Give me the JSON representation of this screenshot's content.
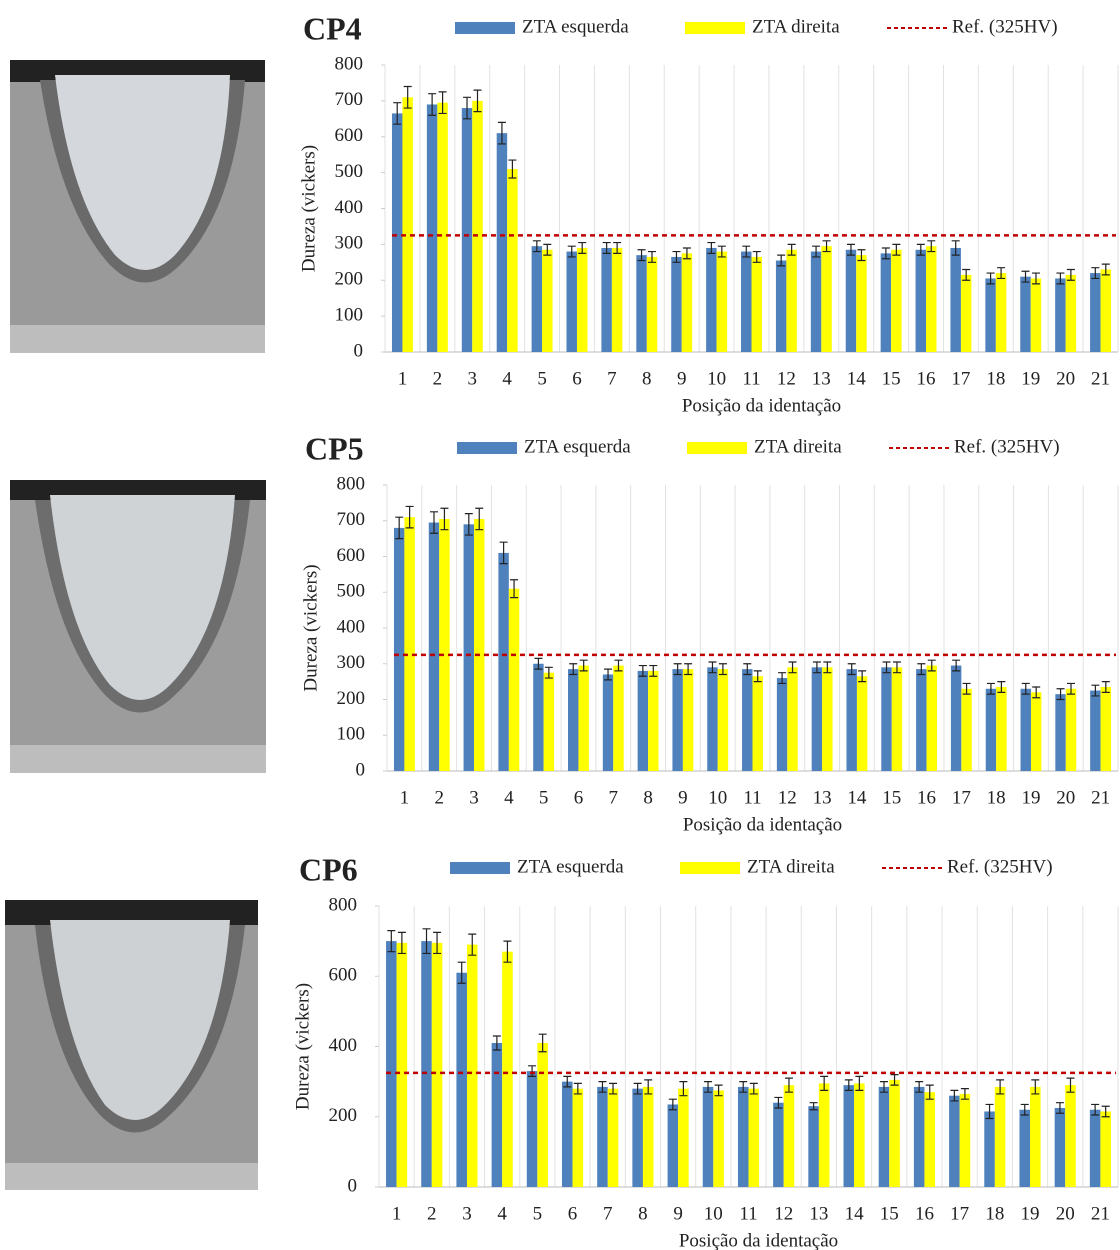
{
  "chart_data": [
    {
      "type": "bar",
      "title": "CP4",
      "x_label": "Posição da identação",
      "y_label": "Dureza (vickers)",
      "categories": [
        "1",
        "2",
        "3",
        "4",
        "5",
        "6",
        "7",
        "8",
        "9",
        "10",
        "11",
        "12",
        "13",
        "14",
        "15",
        "16",
        "17",
        "18",
        "19",
        "20",
        "21"
      ],
      "series": [
        {
          "name": "ZTA esquerda",
          "color": "#4f81bd",
          "values": [
            665,
            690,
            680,
            610,
            295,
            280,
            290,
            270,
            265,
            290,
            280,
            255,
            280,
            285,
            275,
            285,
            290,
            205,
            210,
            205,
            220
          ],
          "errors": [
            30,
            30,
            30,
            30,
            15,
            15,
            15,
            15,
            15,
            15,
            15,
            15,
            15,
            15,
            15,
            15,
            20,
            15,
            15,
            15,
            15
          ]
        },
        {
          "name": "ZTA direita",
          "color": "#ffff00",
          "values": [
            710,
            695,
            700,
            510,
            285,
            290,
            290,
            265,
            275,
            280,
            265,
            285,
            295,
            270,
            285,
            295,
            215,
            220,
            205,
            215,
            230
          ],
          "errors": [
            30,
            30,
            30,
            25,
            15,
            15,
            15,
            15,
            15,
            15,
            15,
            15,
            15,
            15,
            15,
            15,
            15,
            15,
            15,
            15,
            15
          ]
        }
      ],
      "reference": {
        "name": "Ref. (325HV)",
        "value": 325,
        "color": "#c00000"
      },
      "ylim": [
        0,
        800
      ],
      "yticks": [
        0,
        100,
        200,
        300,
        400,
        500,
        600,
        700,
        800
      ],
      "grid": true
    },
    {
      "type": "bar",
      "title": "CP5",
      "x_label": "Posição da identação",
      "y_label": "Dureza (vickers)",
      "categories": [
        "1",
        "2",
        "3",
        "4",
        "5",
        "6",
        "7",
        "8",
        "9",
        "10",
        "11",
        "12",
        "13",
        "14",
        "15",
        "16",
        "17",
        "18",
        "19",
        "20",
        "21"
      ],
      "series": [
        {
          "name": "ZTA esquerda",
          "color": "#4f81bd",
          "values": [
            680,
            695,
            690,
            610,
            300,
            285,
            270,
            280,
            285,
            290,
            285,
            260,
            290,
            285,
            290,
            285,
            295,
            230,
            230,
            215,
            225
          ],
          "errors": [
            30,
            30,
            30,
            30,
            15,
            15,
            15,
            15,
            15,
            15,
            15,
            15,
            15,
            15,
            15,
            15,
            15,
            15,
            15,
            15,
            15
          ]
        },
        {
          "name": "ZTA direita",
          "color": "#ffff00",
          "values": [
            710,
            705,
            705,
            510,
            275,
            295,
            295,
            280,
            285,
            285,
            265,
            290,
            290,
            265,
            290,
            295,
            230,
            235,
            220,
            230,
            235
          ],
          "errors": [
            30,
            30,
            30,
            25,
            15,
            15,
            15,
            15,
            15,
            15,
            15,
            15,
            15,
            15,
            15,
            15,
            15,
            15,
            15,
            15,
            15
          ]
        }
      ],
      "reference": {
        "name": "Ref. (325HV)",
        "value": 325,
        "color": "#c00000"
      },
      "ylim": [
        0,
        800
      ],
      "yticks": [
        0,
        100,
        200,
        300,
        400,
        500,
        600,
        700,
        800
      ],
      "grid": true
    },
    {
      "type": "bar",
      "title": "CP6",
      "x_label": "Posição da identação",
      "y_label": "Dureza (vickers)",
      "categories": [
        "1",
        "2",
        "3",
        "4",
        "5",
        "6",
        "7",
        "8",
        "9",
        "10",
        "11",
        "12",
        "13",
        "14",
        "15",
        "16",
        "17",
        "18",
        "19",
        "20",
        "21"
      ],
      "series": [
        {
          "name": "ZTA esquerda",
          "color": "#4f81bd",
          "values": [
            700,
            700,
            610,
            410,
            330,
            300,
            285,
            280,
            235,
            285,
            285,
            240,
            230,
            290,
            285,
            285,
            260,
            215,
            220,
            225,
            220
          ],
          "errors": [
            30,
            35,
            30,
            20,
            15,
            15,
            15,
            15,
            15,
            15,
            15,
            15,
            10,
            15,
            15,
            15,
            15,
            20,
            15,
            15,
            15
          ]
        },
        {
          "name": "ZTA direita",
          "color": "#ffff00",
          "values": [
            695,
            695,
            690,
            670,
            410,
            280,
            280,
            285,
            280,
            275,
            280,
            290,
            295,
            295,
            305,
            270,
            265,
            285,
            285,
            290,
            215
          ],
          "errors": [
            30,
            30,
            30,
            30,
            25,
            15,
            15,
            20,
            20,
            15,
            15,
            20,
            20,
            20,
            15,
            20,
            15,
            20,
            20,
            20,
            15
          ]
        }
      ],
      "reference": {
        "name": "Ref. (325HV)",
        "value": 325,
        "color": "#c00000"
      },
      "ylim": [
        0,
        800
      ],
      "yticks": [
        0,
        200,
        400,
        600,
        800
      ],
      "grid": true
    }
  ]
}
